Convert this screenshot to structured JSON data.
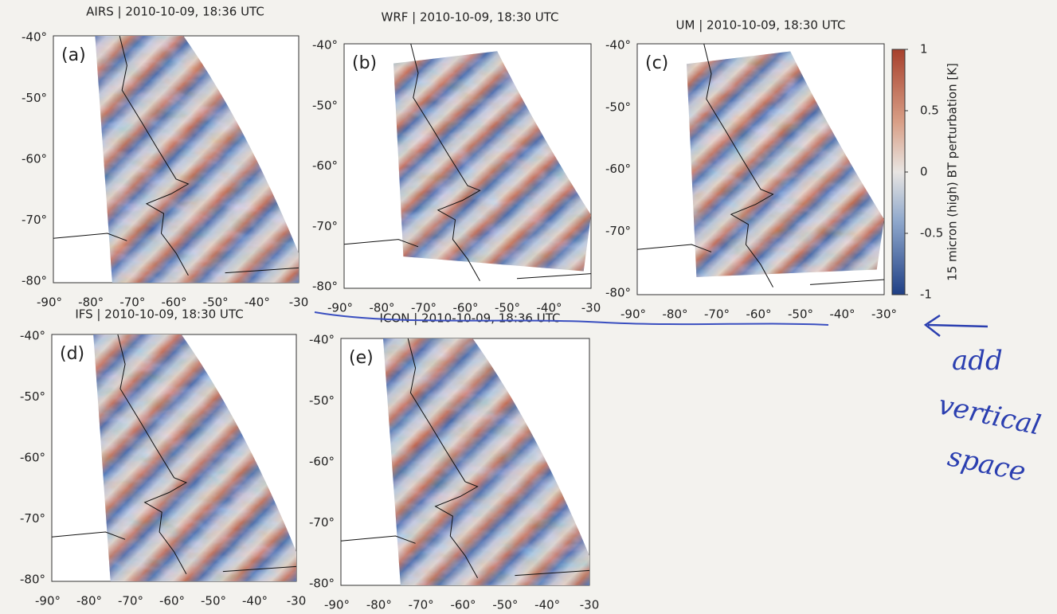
{
  "panels": [
    {
      "label": "(a)",
      "title": "AIRS | 2010-10-09, 18:36 UTC",
      "yticks": [
        "-40°",
        "-50°",
        "-60°",
        "-70°",
        "-80°"
      ],
      "xticks": [
        "-90°",
        "-80°",
        "-70°",
        "-60°",
        "-50°",
        "-40°",
        "-30"
      ]
    },
    {
      "label": "(b)",
      "title": "WRF | 2010-10-09, 18:30 UTC",
      "yticks": [
        "-40°",
        "-50°",
        "-60°",
        "-70°",
        "-80°"
      ],
      "xticks": [
        "-90°",
        "-80°",
        "-70°",
        "-60°",
        "-50°",
        "-40°",
        "-30"
      ]
    },
    {
      "label": "(c)",
      "title": "UM | 2010-10-09, 18:30 UTC",
      "yticks": [
        "-40°",
        "-50°",
        "-60°",
        "-70°",
        "-80°"
      ],
      "xticks": [
        "-90°",
        "-80°",
        "-70°",
        "-60°",
        "-50°",
        "-40°",
        "-30°"
      ]
    },
    {
      "label": "(d)",
      "title": "IFS | 2010-10-09, 18:30 UTC",
      "yticks": [
        "-40°",
        "-50°",
        "-60°",
        "-70°",
        "-80°"
      ],
      "xticks": [
        "-90°",
        "-80°",
        "-70°",
        "-60°",
        "-50°",
        "-40°",
        "-30"
      ]
    },
    {
      "label": "(e)",
      "title": "ICON | 2010-10-09, 18:36 UTC",
      "yticks": [
        "-40°",
        "-50°",
        "-60°",
        "-70°",
        "-80°"
      ],
      "xticks": [
        "-90°",
        "-80°",
        "-70°",
        "-60°",
        "-50°",
        "-40°",
        "-30"
      ]
    }
  ],
  "colorbar": {
    "label": "15 micron (high) BT perturbation [K]",
    "ticks": [
      1,
      0.5,
      0,
      -0.5,
      -1
    ],
    "range": [
      -1,
      1
    ]
  },
  "annotation": {
    "lines": [
      "add",
      "vertical",
      "space"
    ]
  }
}
